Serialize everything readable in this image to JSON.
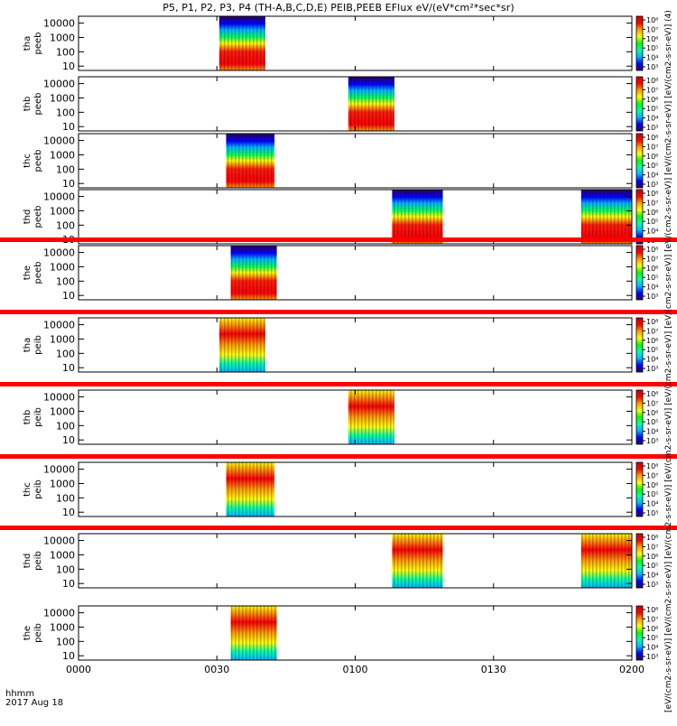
{
  "title": "P5, P1, P2, P3, P4 (TH-A,B,C,D,E) PEIB,PEEB EFlux eV/(eV*cm²*sec*sr)",
  "colorbar_label": "[eV/(cm2-s-sr-eV)] [eV/(cm2-s-sr-eV)] [eV/(cm2-s-sr-eV)] [eV/(cm2-s-sr-eV)] [eV/(cm2-s-sr-eV)] [eV/(cm2-s-sr-eV)] [eV/(cm2-s-sr-eV)] [eV/(cm2-s-sr-eV)] [eV/(cm2-s-sr-eV)] (4)",
  "x_axis": {
    "label_line1": "hhmm",
    "label_line2": "2017 Aug 18",
    "ticks": [
      "0000",
      "0030",
      "0100",
      "0130",
      "0200"
    ],
    "range_minutes": [
      0,
      120
    ]
  },
  "colors": {
    "status_bar": "#ff0000",
    "colormap": [
      "#30005a",
      "#0000ff",
      "#00b4ff",
      "#00ffaa",
      "#00ff00",
      "#ffff00",
      "#ffa000",
      "#ff0000",
      "#c80000"
    ]
  },
  "chart_data": {
    "type": "heatmap",
    "y_scale": "log",
    "y_ticks": [
      "10",
      "100",
      "1000",
      "10000"
    ],
    "colorbar_ticks": [
      "10³",
      "10⁴",
      "10⁵",
      "10⁶",
      "10⁷",
      "10⁸"
    ],
    "panels": [
      {
        "ylabel_line1": "tha",
        "ylabel_line2": "peeb",
        "status_bar": false,
        "intervals": [
          {
            "start_min": 30.5,
            "end_min": 40.5
          }
        ]
      },
      {
        "ylabel_line1": "thb",
        "ylabel_line2": "peeb",
        "status_bar": false,
        "intervals": [
          {
            "start_min": 58.5,
            "end_min": 68.5
          }
        ]
      },
      {
        "ylabel_line1": "thc",
        "ylabel_line2": "peeb",
        "status_bar": false,
        "intervals": [
          {
            "start_min": 32.0,
            "end_min": 42.5
          }
        ]
      },
      {
        "ylabel_line1": "thd",
        "ylabel_line2": "peeb",
        "status_bar": false,
        "intervals": [
          {
            "start_min": 68.0,
            "end_min": 79.0
          },
          {
            "start_min": 109.0,
            "end_min": 120.0
          }
        ]
      },
      {
        "ylabel_line1": "the",
        "ylabel_line2": "peeb",
        "status_bar": true,
        "intervals": [
          {
            "start_min": 33.0,
            "end_min": 43.0
          }
        ]
      },
      {
        "ylabel_line1": "tha",
        "ylabel_line2": "peib",
        "status_bar": true,
        "intervals": [
          {
            "start_min": 30.5,
            "end_min": 40.5
          }
        ]
      },
      {
        "ylabel_line1": "thb",
        "ylabel_line2": "peib",
        "status_bar": true,
        "intervals": [
          {
            "start_min": 58.5,
            "end_min": 68.5
          }
        ]
      },
      {
        "ylabel_line1": "thc",
        "ylabel_line2": "peib",
        "status_bar": true,
        "intervals": [
          {
            "start_min": 32.0,
            "end_min": 42.5
          }
        ]
      },
      {
        "ylabel_line1": "thd",
        "ylabel_line2": "peib",
        "status_bar": true,
        "intervals": [
          {
            "start_min": 68.0,
            "end_min": 79.0
          },
          {
            "start_min": 109.0,
            "end_min": 120.0
          }
        ]
      },
      {
        "ylabel_line1": "the",
        "ylabel_line2": "peib",
        "status_bar": false,
        "intervals": [
          {
            "start_min": 33.0,
            "end_min": 43.0
          }
        ]
      }
    ]
  }
}
